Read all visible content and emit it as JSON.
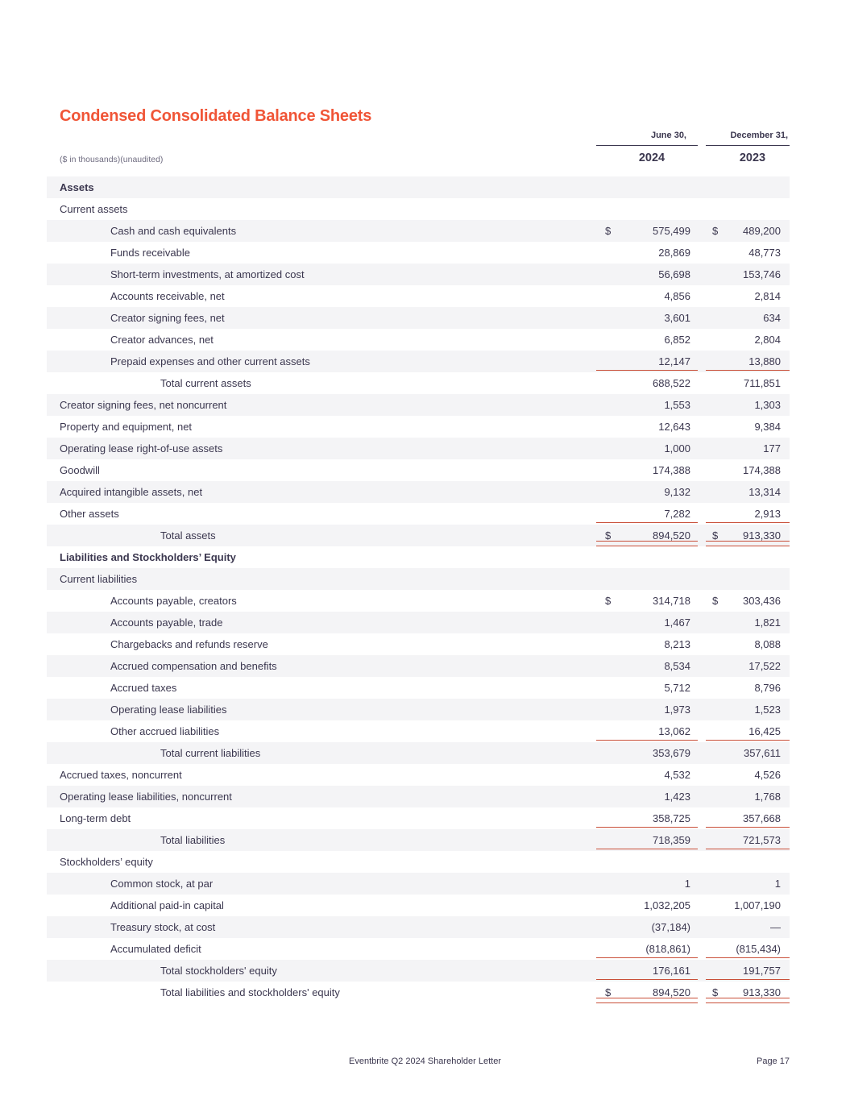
{
  "page": {
    "title": "Condensed Consolidated Balance Sheets",
    "subtitle": "($ in thousands)(unaudited)",
    "footer": {
      "center": "Eventbrite Q2 2024 Shareholder Letter",
      "page_label": "Page",
      "page_number": "17"
    }
  },
  "colors": {
    "title_accent": "#F05537",
    "rule_line": "#C9503A",
    "header_rule": "#3B374F",
    "row_shade": "#F4F4F6",
    "text": "#3B374F"
  },
  "table": {
    "columns": [
      {
        "date_label": "June 30,",
        "year": "2024"
      },
      {
        "date_label": "December 31,",
        "year": "2023"
      }
    ],
    "rows": [
      {
        "label": "Assets",
        "indent": 0,
        "bold": true,
        "shade": true,
        "dollar": false,
        "v1": "",
        "v2": "",
        "rule": "none"
      },
      {
        "label": "Current assets",
        "indent": 0,
        "bold": false,
        "shade": false,
        "dollar": false,
        "v1": "",
        "v2": "",
        "rule": "none"
      },
      {
        "label": "Cash and cash equivalents",
        "indent": 1,
        "bold": false,
        "shade": true,
        "dollar": true,
        "v1": "575,499",
        "v2": "489,200",
        "rule": "none"
      },
      {
        "label": "Funds receivable",
        "indent": 1,
        "bold": false,
        "shade": false,
        "dollar": false,
        "v1": "28,869",
        "v2": "48,773",
        "rule": "none"
      },
      {
        "label": "Short-term investments, at amortized cost",
        "indent": 1,
        "bold": false,
        "shade": true,
        "dollar": false,
        "v1": "56,698",
        "v2": "153,746",
        "rule": "none"
      },
      {
        "label": "Accounts receivable, net",
        "indent": 1,
        "bold": false,
        "shade": false,
        "dollar": false,
        "v1": "4,856",
        "v2": "2,814",
        "rule": "none"
      },
      {
        "label": "Creator signing fees, net",
        "indent": 1,
        "bold": false,
        "shade": true,
        "dollar": false,
        "v1": "3,601",
        "v2": "634",
        "rule": "none"
      },
      {
        "label": "Creator advances, net",
        "indent": 1,
        "bold": false,
        "shade": false,
        "dollar": false,
        "v1": "6,852",
        "v2": "2,804",
        "rule": "none"
      },
      {
        "label": "Prepaid expenses and other current assets",
        "indent": 1,
        "bold": false,
        "shade": true,
        "dollar": false,
        "v1": "12,147",
        "v2": "13,880",
        "rule": "single"
      },
      {
        "label": "Total current assets",
        "indent": 2,
        "bold": false,
        "shade": false,
        "dollar": false,
        "v1": "688,522",
        "v2": "711,851",
        "rule": "none"
      },
      {
        "label": "Creator signing fees, net noncurrent",
        "indent": 0,
        "bold": false,
        "shade": true,
        "dollar": false,
        "v1": "1,553",
        "v2": "1,303",
        "rule": "none"
      },
      {
        "label": "Property and equipment, net",
        "indent": 0,
        "bold": false,
        "shade": false,
        "dollar": false,
        "v1": "12,643",
        "v2": "9,384",
        "rule": "none"
      },
      {
        "label": "Operating lease right-of-use assets",
        "indent": 0,
        "bold": false,
        "shade": true,
        "dollar": false,
        "v1": "1,000",
        "v2": "177",
        "rule": "none"
      },
      {
        "label": "Goodwill",
        "indent": 0,
        "bold": false,
        "shade": false,
        "dollar": false,
        "v1": "174,388",
        "v2": "174,388",
        "rule": "none"
      },
      {
        "label": "Acquired intangible assets, net",
        "indent": 0,
        "bold": false,
        "shade": true,
        "dollar": false,
        "v1": "9,132",
        "v2": "13,314",
        "rule": "none"
      },
      {
        "label": "Other assets",
        "indent": 0,
        "bold": false,
        "shade": false,
        "dollar": false,
        "v1": "7,282",
        "v2": "2,913",
        "rule": "single"
      },
      {
        "label": "Total assets",
        "indent": 2,
        "bold": false,
        "shade": true,
        "dollar": true,
        "v1": "894,520",
        "v2": "913,330",
        "rule": "double"
      },
      {
        "label": "Liabilities and Stockholders’ Equity",
        "indent": 0,
        "bold": true,
        "shade": false,
        "dollar": false,
        "v1": "",
        "v2": "",
        "rule": "none"
      },
      {
        "label": "Current liabilities",
        "indent": 0,
        "bold": false,
        "shade": true,
        "dollar": false,
        "v1": "",
        "v2": "",
        "rule": "none"
      },
      {
        "label": "Accounts payable, creators",
        "indent": 1,
        "bold": false,
        "shade": false,
        "dollar": true,
        "v1": "314,718",
        "v2": "303,436",
        "rule": "none"
      },
      {
        "label": "Accounts payable, trade",
        "indent": 1,
        "bold": false,
        "shade": true,
        "dollar": false,
        "v1": "1,467",
        "v2": "1,821",
        "rule": "none"
      },
      {
        "label": "Chargebacks and refunds reserve",
        "indent": 1,
        "bold": false,
        "shade": false,
        "dollar": false,
        "v1": "8,213",
        "v2": "8,088",
        "rule": "none"
      },
      {
        "label": "Accrued compensation and benefits",
        "indent": 1,
        "bold": false,
        "shade": true,
        "dollar": false,
        "v1": "8,534",
        "v2": "17,522",
        "rule": "none"
      },
      {
        "label": "Accrued taxes",
        "indent": 1,
        "bold": false,
        "shade": false,
        "dollar": false,
        "v1": "5,712",
        "v2": "8,796",
        "rule": "none"
      },
      {
        "label": "Operating lease liabilities",
        "indent": 1,
        "bold": false,
        "shade": true,
        "dollar": false,
        "v1": "1,973",
        "v2": "1,523",
        "rule": "none"
      },
      {
        "label": "Other accrued liabilities",
        "indent": 1,
        "bold": false,
        "shade": false,
        "dollar": false,
        "v1": "13,062",
        "v2": "16,425",
        "rule": "single"
      },
      {
        "label": "Total current liabilities",
        "indent": 2,
        "bold": false,
        "shade": true,
        "dollar": false,
        "v1": "353,679",
        "v2": "357,611",
        "rule": "none"
      },
      {
        "label": "Accrued taxes, noncurrent",
        "indent": 0,
        "bold": false,
        "shade": false,
        "dollar": false,
        "v1": "4,532",
        "v2": "4,526",
        "rule": "none"
      },
      {
        "label": "Operating lease liabilities, noncurrent",
        "indent": 0,
        "bold": false,
        "shade": true,
        "dollar": false,
        "v1": "1,423",
        "v2": "1,768",
        "rule": "none"
      },
      {
        "label": "Long-term debt",
        "indent": 0,
        "bold": false,
        "shade": false,
        "dollar": false,
        "v1": "358,725",
        "v2": "357,668",
        "rule": "single"
      },
      {
        "label": "Total liabilities",
        "indent": 2,
        "bold": false,
        "shade": true,
        "dollar": false,
        "v1": "718,359",
        "v2": "721,573",
        "rule": "single"
      },
      {
        "label": "Stockholders’ equity",
        "indent": 0,
        "bold": false,
        "shade": false,
        "dollar": false,
        "v1": "",
        "v2": "",
        "rule": "none"
      },
      {
        "label": "Common stock, at par",
        "indent": 1,
        "bold": false,
        "shade": true,
        "dollar": false,
        "v1": "1",
        "v2": "1",
        "rule": "none"
      },
      {
        "label": "Additional paid-in capital",
        "indent": 1,
        "bold": false,
        "shade": false,
        "dollar": false,
        "v1": "1,032,205",
        "v2": "1,007,190",
        "rule": "none"
      },
      {
        "label": "Treasury stock, at cost",
        "indent": 1,
        "bold": false,
        "shade": true,
        "dollar": false,
        "v1": "(37,184)",
        "v2": "—",
        "rule": "none"
      },
      {
        "label": "Accumulated deficit",
        "indent": 1,
        "bold": false,
        "shade": false,
        "dollar": false,
        "v1": "(818,861)",
        "v2": "(815,434)",
        "rule": "single"
      },
      {
        "label": "Total stockholders' equity",
        "indent": 2,
        "bold": false,
        "shade": true,
        "dollar": false,
        "v1": "176,161",
        "v2": "191,757",
        "rule": "single"
      },
      {
        "label": "Total liabilities and stockholders' equity",
        "indent": 2,
        "bold": false,
        "shade": false,
        "dollar": true,
        "v1": "894,520",
        "v2": "913,330",
        "rule": "double"
      }
    ]
  }
}
